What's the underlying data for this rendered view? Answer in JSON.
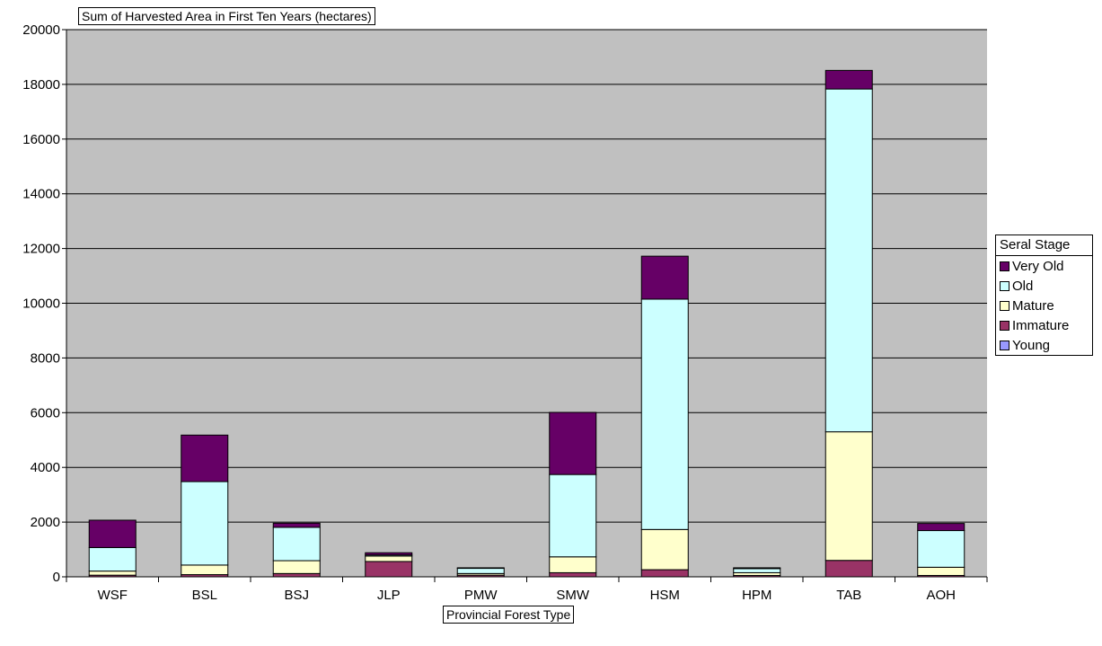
{
  "chart_data": {
    "type": "bar",
    "stacked": true,
    "title": "Sum of Harvested Area in First Ten Years (hectares)",
    "xlabel": "Provincial Forest Type",
    "ylabel": "",
    "ylim": [
      0,
      20000
    ],
    "yticks": [
      0,
      2000,
      4000,
      6000,
      8000,
      10000,
      12000,
      14000,
      16000,
      18000,
      20000
    ],
    "grid": true,
    "legend_title": "Seral Stage",
    "legend_position": "right",
    "categories": [
      "WSF",
      "BSL",
      "BSJ",
      "JLP",
      "PMW",
      "SMW",
      "HSM",
      "HPM",
      "TAB",
      "AOH"
    ],
    "series": [
      {
        "name": "Young",
        "color": "#9999ff",
        "values": [
          0,
          0,
          0,
          0,
          0,
          0,
          0,
          0,
          0,
          0
        ]
      },
      {
        "name": "Immature",
        "color": "#993366",
        "values": [
          60,
          80,
          120,
          560,
          60,
          150,
          260,
          50,
          600,
          50
        ]
      },
      {
        "name": "Mature",
        "color": "#ffffcc",
        "values": [
          150,
          350,
          470,
          200,
          60,
          580,
          1470,
          100,
          4700,
          300
        ]
      },
      {
        "name": "Old",
        "color": "#ccffff",
        "values": [
          860,
          3050,
          1220,
          40,
          190,
          3010,
          8420,
          150,
          12530,
          1340
        ]
      },
      {
        "name": "Very Old",
        "color": "#660066",
        "values": [
          1000,
          1700,
          150,
          80,
          20,
          2270,
          1570,
          30,
          680,
          260
        ]
      }
    ]
  }
}
